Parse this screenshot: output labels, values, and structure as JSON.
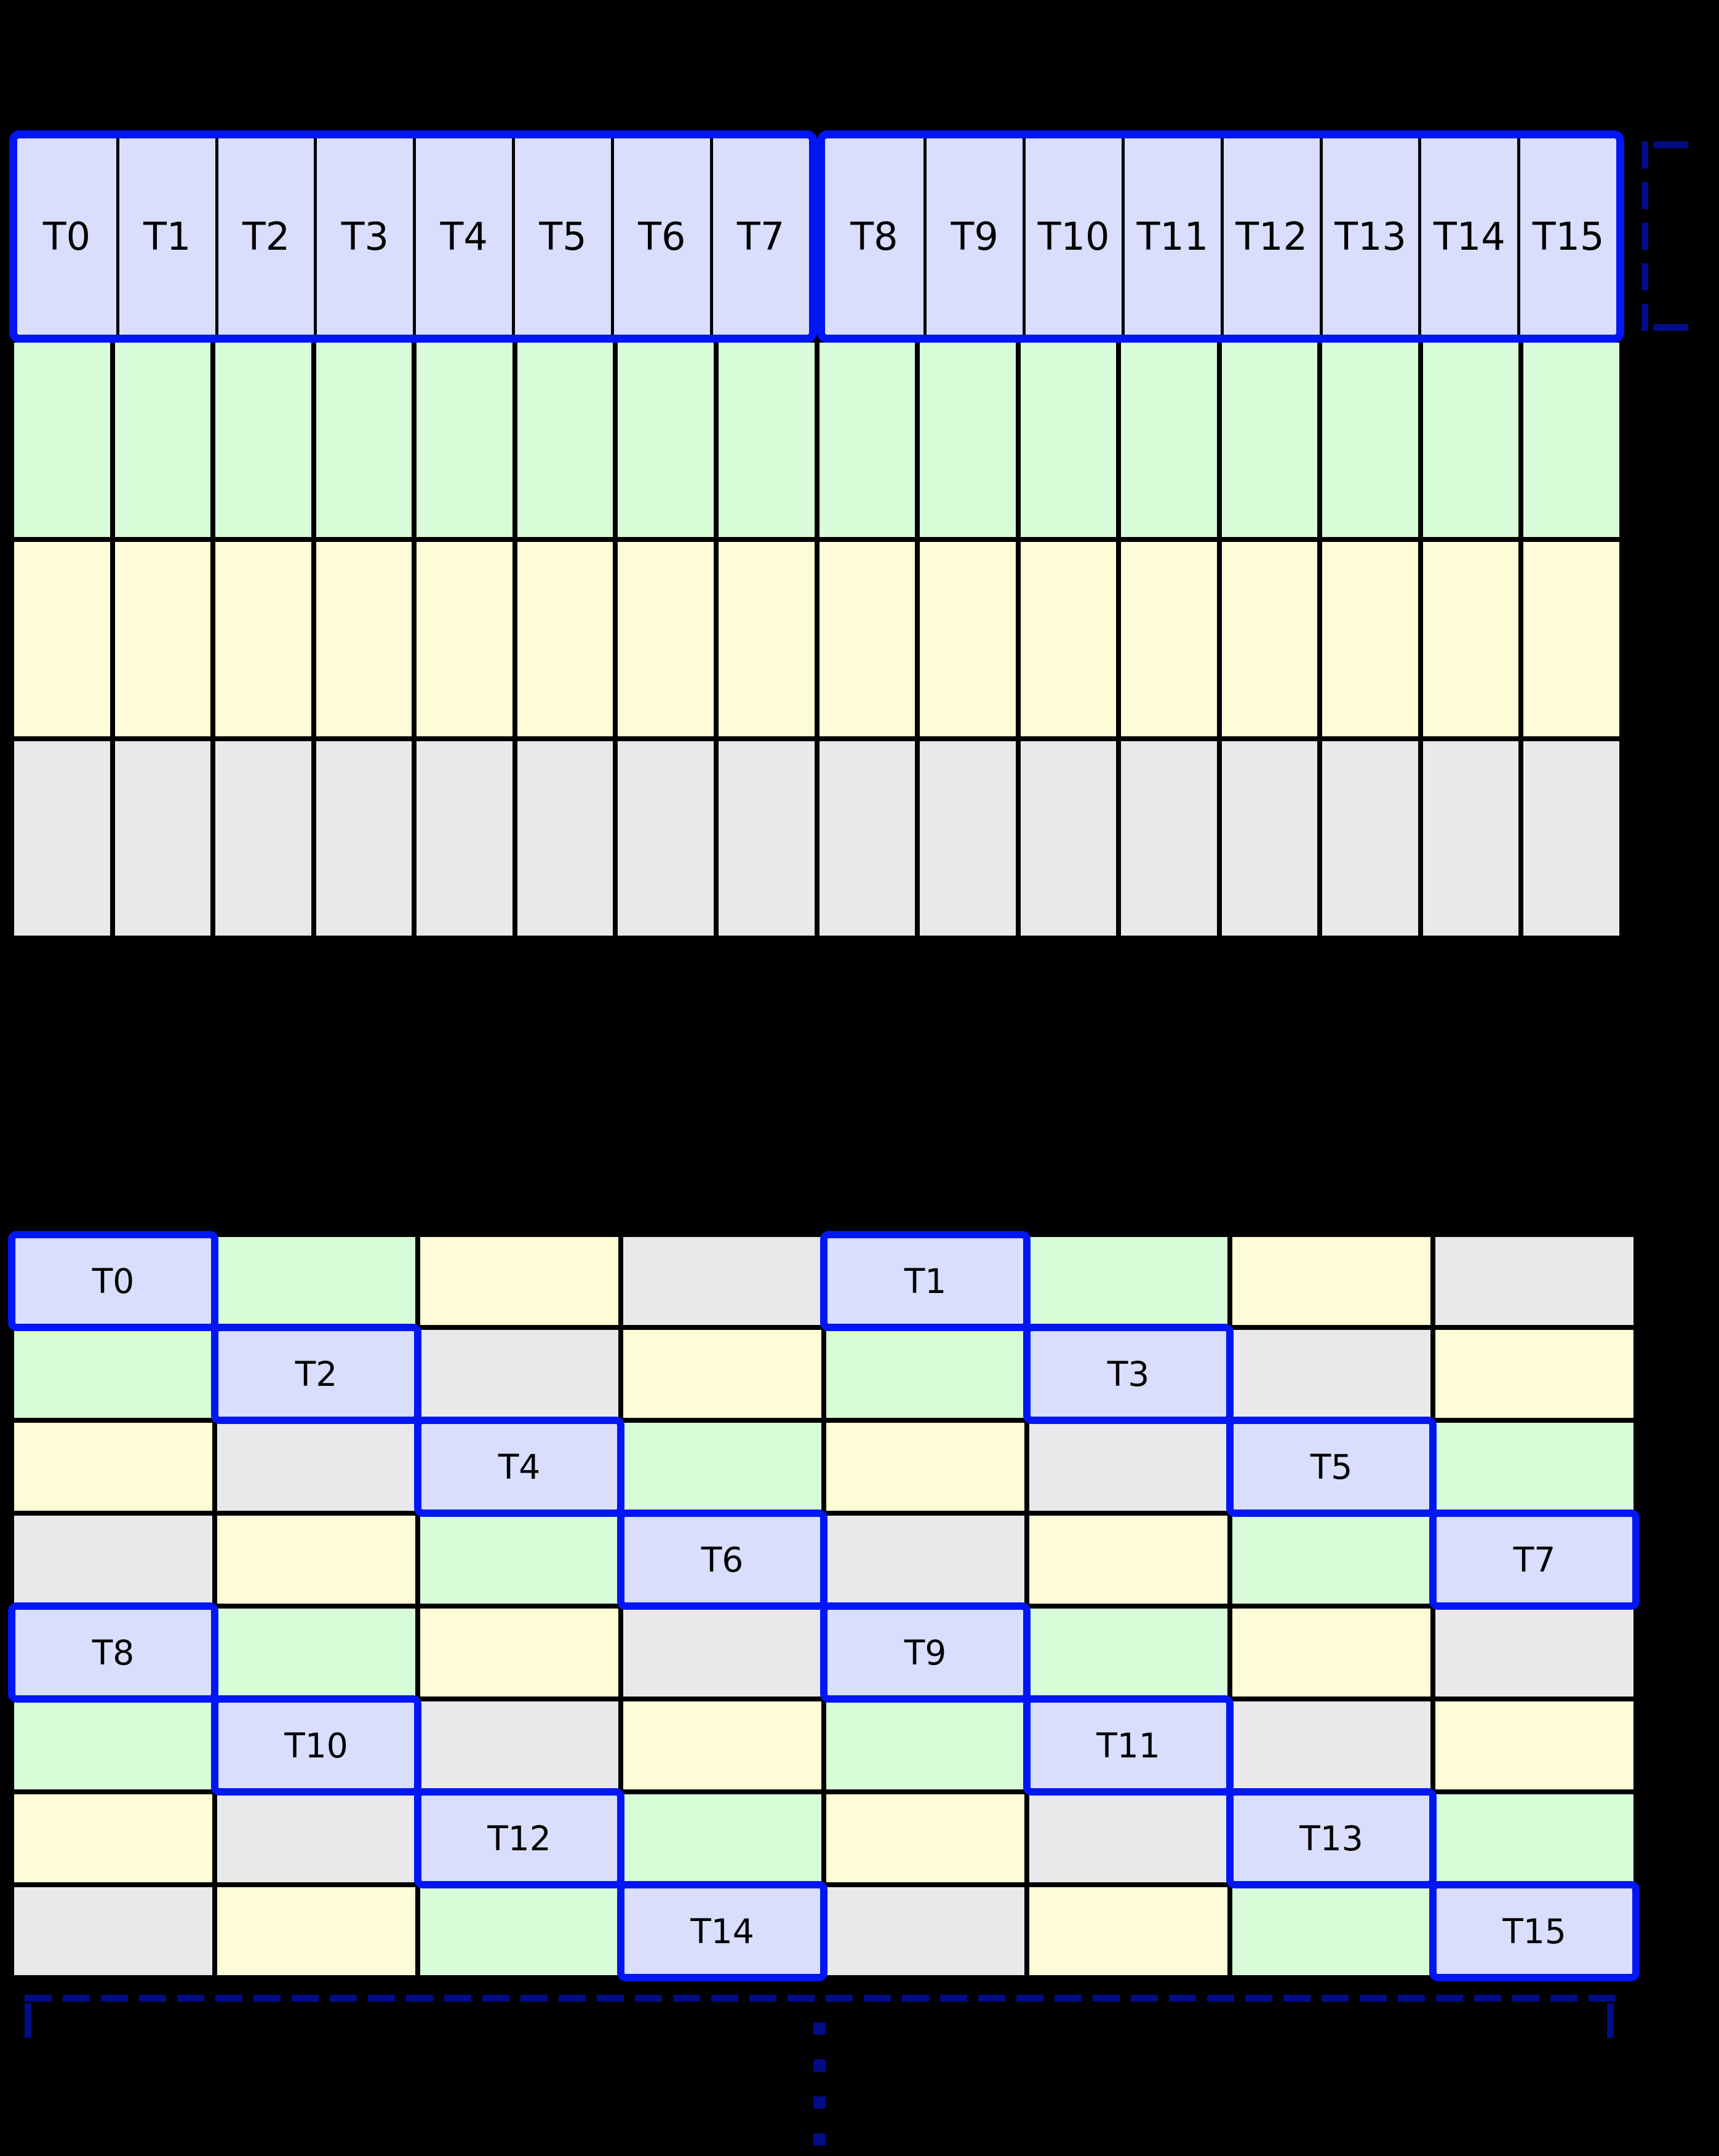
{
  "palette": {
    "page_background": "#000000",
    "lavender_cell": "#d8defb",
    "green_cell": "#d8fcd8",
    "yellow_cell": "#fdfcd6",
    "gray_cell": "#e9e9eb",
    "highlight_border_blue": "#0016f5",
    "grid_line_black": "#000000",
    "bracket_navy": "#000d87",
    "label_text": "#000000"
  },
  "linear_table": {
    "columns": 16,
    "thread_groups": [
      {
        "labels": [
          "T0",
          "T1",
          "T2",
          "T3",
          "T4",
          "T5",
          "T6",
          "T7"
        ]
      },
      {
        "labels": [
          "T8",
          "T9",
          "T10",
          "T11",
          "T12",
          "T13",
          "T14",
          "T15"
        ]
      }
    ],
    "unlabeled_rows": [
      "green",
      "yellow",
      "gray"
    ]
  },
  "swizzled_table": {
    "columns": 8,
    "rows": [
      [
        {
          "color": "lavender",
          "label": "T0"
        },
        {
          "color": "green"
        },
        {
          "color": "yellow"
        },
        {
          "color": "gray"
        },
        {
          "color": "lavender",
          "label": "T1"
        },
        {
          "color": "green"
        },
        {
          "color": "yellow"
        },
        {
          "color": "gray"
        }
      ],
      [
        {
          "color": "green"
        },
        {
          "color": "lavender",
          "label": "T2"
        },
        {
          "color": "gray"
        },
        {
          "color": "yellow"
        },
        {
          "color": "green"
        },
        {
          "color": "lavender",
          "label": "T3"
        },
        {
          "color": "gray"
        },
        {
          "color": "yellow"
        }
      ],
      [
        {
          "color": "yellow"
        },
        {
          "color": "gray"
        },
        {
          "color": "lavender",
          "label": "T4"
        },
        {
          "color": "green"
        },
        {
          "color": "yellow"
        },
        {
          "color": "gray"
        },
        {
          "color": "lavender",
          "label": "T5"
        },
        {
          "color": "green"
        }
      ],
      [
        {
          "color": "gray"
        },
        {
          "color": "yellow"
        },
        {
          "color": "green"
        },
        {
          "color": "lavender",
          "label": "T6"
        },
        {
          "color": "gray"
        },
        {
          "color": "yellow"
        },
        {
          "color": "green"
        },
        {
          "color": "lavender",
          "label": "T7"
        }
      ],
      [
        {
          "color": "lavender",
          "label": "T8"
        },
        {
          "color": "green"
        },
        {
          "color": "yellow"
        },
        {
          "color": "gray"
        },
        {
          "color": "lavender",
          "label": "T9"
        },
        {
          "color": "green"
        },
        {
          "color": "yellow"
        },
        {
          "color": "gray"
        }
      ],
      [
        {
          "color": "green"
        },
        {
          "color": "lavender",
          "label": "T10"
        },
        {
          "color": "gray"
        },
        {
          "color": "yellow"
        },
        {
          "color": "green"
        },
        {
          "color": "lavender",
          "label": "T11"
        },
        {
          "color": "gray"
        },
        {
          "color": "yellow"
        }
      ],
      [
        {
          "color": "yellow"
        },
        {
          "color": "gray"
        },
        {
          "color": "lavender",
          "label": "T12"
        },
        {
          "color": "green"
        },
        {
          "color": "yellow"
        },
        {
          "color": "gray"
        },
        {
          "color": "lavender",
          "label": "T13"
        },
        {
          "color": "green"
        }
      ],
      [
        {
          "color": "gray"
        },
        {
          "color": "yellow"
        },
        {
          "color": "green"
        },
        {
          "color": "lavender",
          "label": "T14"
        },
        {
          "color": "gray"
        },
        {
          "color": "yellow"
        },
        {
          "color": "green"
        },
        {
          "color": "lavender",
          "label": "T15"
        }
      ]
    ]
  },
  "annotations": {
    "row_height_bracket": "dashed-square-bracket-icon",
    "table_width_bracket": "dashed-span-bracket-icon",
    "continuation": "vertical-ellipsis-icon"
  }
}
